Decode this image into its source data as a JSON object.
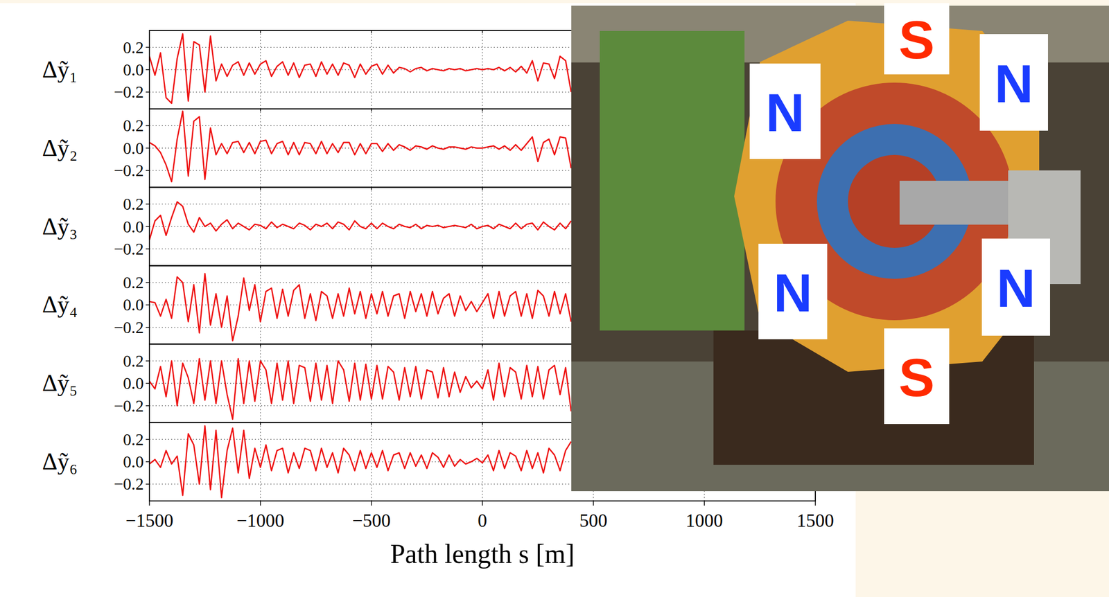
{
  "chart_data": {
    "type": "line",
    "xlabel": "Path length s [m]",
    "x": [
      -1500,
      -1475,
      -1450,
      -1425,
      -1400,
      -1375,
      -1350,
      -1325,
      -1300,
      -1275,
      -1250,
      -1225,
      -1200,
      -1175,
      -1150,
      -1125,
      -1100,
      -1075,
      -1050,
      -1025,
      -1000,
      -975,
      -950,
      -925,
      -900,
      -875,
      -850,
      -825,
      -800,
      -775,
      -750,
      -725,
      -700,
      -675,
      -650,
      -625,
      -600,
      -575,
      -550,
      -525,
      -500,
      -475,
      -450,
      -425,
      -400,
      -375,
      -350,
      -325,
      -300,
      -275,
      -250,
      -225,
      -200,
      -175,
      -150,
      -125,
      -100,
      -75,
      -50,
      -25,
      0,
      25,
      50,
      75,
      100,
      125,
      150,
      175,
      200,
      225,
      250,
      275,
      300,
      325,
      350,
      375,
      400
    ],
    "xlim": [
      -1500,
      1500
    ],
    "xticks": [
      {
        "value": -1500,
        "label": "−1500"
      },
      {
        "value": -1000,
        "label": "−1000"
      },
      {
        "value": -500,
        "label": "−500"
      },
      0,
      500,
      1000,
      1500
    ],
    "ylim": [
      -0.35,
      0.35
    ],
    "yticks": [
      {
        "value": -0.2,
        "label": "−0.2"
      },
      {
        "value": 0,
        "label": "0.0"
      },
      0.2
    ],
    "grid": true,
    "series": [
      {
        "name": "Δỹ₁",
        "color": "#ee1111",
        "values": [
          0.12,
          -0.05,
          0.15,
          -0.25,
          -0.3,
          0.1,
          0.32,
          -0.28,
          0.25,
          0.22,
          -0.2,
          0.3,
          -0.1,
          0.05,
          -0.06,
          0.04,
          0.07,
          -0.05,
          0.06,
          -0.04,
          0.05,
          0.08,
          -0.06,
          0.03,
          0.07,
          -0.05,
          0.06,
          -0.07,
          0.04,
          0.05,
          -0.06,
          0.07,
          -0.04,
          0.05,
          -0.05,
          0.06,
          0.04,
          -0.07,
          0.05,
          -0.04,
          0.03,
          0.05,
          -0.04,
          0.04,
          -0.03,
          0.02,
          0.01,
          -0.02,
          0.01,
          0.02,
          -0.01,
          0.01,
          0.0,
          -0.01,
          0.01,
          0.0,
          0.01,
          -0.01,
          0.0,
          0.01,
          0.0,
          0.01,
          0.0,
          0.02,
          -0.01,
          0.02,
          -0.02,
          0.03,
          -0.03,
          0.08,
          -0.1,
          0.06,
          0.05,
          -0.08,
          0.12,
          0.08,
          -0.2
        ]
      },
      {
        "name": "Δỹ₂",
        "color": "#ee1111",
        "values": [
          0.05,
          0.02,
          -0.04,
          -0.15,
          -0.3,
          0.08,
          0.33,
          -0.25,
          0.24,
          0.28,
          -0.28,
          0.18,
          -0.06,
          0.04,
          -0.05,
          0.05,
          0.06,
          -0.04,
          0.05,
          -0.05,
          0.06,
          0.07,
          -0.05,
          0.04,
          0.06,
          -0.06,
          0.05,
          -0.06,
          0.05,
          0.04,
          -0.05,
          0.06,
          -0.05,
          0.04,
          -0.04,
          0.05,
          0.05,
          -0.06,
          0.04,
          -0.05,
          0.04,
          0.04,
          -0.03,
          0.04,
          -0.02,
          0.03,
          0.01,
          -0.02,
          0.02,
          0.01,
          -0.01,
          0.02,
          0.0,
          -0.01,
          0.01,
          0.01,
          0.0,
          -0.01,
          0.01,
          0.0,
          0.0,
          0.01,
          0.02,
          -0.01,
          0.02,
          -0.02,
          0.03,
          -0.02,
          0.04,
          0.1,
          -0.12,
          0.05,
          0.08,
          -0.06,
          0.1,
          0.09,
          -0.18
        ]
      },
      {
        "name": "Δỹ₃",
        "color": "#ee1111",
        "values": [
          -0.12,
          0.05,
          0.1,
          -0.08,
          0.08,
          0.22,
          0.18,
          0.02,
          -0.05,
          0.08,
          0.0,
          0.03,
          -0.04,
          0.02,
          0.06,
          -0.02,
          0.03,
          0.0,
          -0.03,
          0.02,
          0.01,
          -0.02,
          0.04,
          -0.01,
          0.02,
          0.0,
          -0.02,
          0.03,
          0.01,
          -0.03,
          0.02,
          0.0,
          0.03,
          -0.02,
          0.04,
          0.02,
          -0.03,
          0.05,
          0.0,
          -0.02,
          0.03,
          -0.02,
          0.03,
          0.0,
          -0.02,
          0.02,
          0.0,
          -0.01,
          0.02,
          -0.02,
          0.01,
          0.0,
          0.01,
          -0.01,
          0.0,
          0.01,
          0.0,
          -0.01,
          0.02,
          -0.02,
          0.0,
          0.01,
          -0.02,
          0.02,
          0.0,
          -0.02,
          0.03,
          -0.02,
          0.02,
          0.03,
          -0.03,
          0.04,
          0.0,
          -0.03,
          0.03,
          -0.02,
          0.05
        ]
      },
      {
        "name": "Δỹ₄",
        "color": "#ee1111",
        "values": [
          0.03,
          0.02,
          -0.1,
          0.05,
          -0.12,
          0.25,
          0.2,
          -0.15,
          0.18,
          -0.25,
          0.28,
          -0.18,
          0.1,
          -0.2,
          0.08,
          -0.32,
          -0.1,
          0.24,
          -0.05,
          0.18,
          -0.15,
          0.12,
          0.15,
          -0.12,
          0.14,
          -0.1,
          0.13,
          0.18,
          -0.12,
          0.1,
          -0.14,
          0.12,
          0.08,
          -0.12,
          0.1,
          -0.1,
          0.15,
          -0.08,
          0.12,
          -0.12,
          0.1,
          -0.08,
          0.12,
          -0.1,
          0.08,
          0.1,
          -0.12,
          0.12,
          -0.06,
          0.1,
          -0.1,
          0.12,
          -0.08,
          0.06,
          0.1,
          -0.1,
          0.08,
          -0.05,
          0.03,
          -0.06,
          0.02,
          0.1,
          -0.12,
          0.12,
          -0.1,
          0.08,
          0.12,
          -0.1,
          0.1,
          -0.12,
          0.13,
          0.08,
          -0.1,
          0.12,
          -0.08,
          0.1,
          -0.15
        ]
      },
      {
        "name": "Δỹ₅",
        "color": "#ee1111",
        "values": [
          0.02,
          -0.05,
          0.15,
          -0.12,
          0.2,
          -0.2,
          0.18,
          0.05,
          -0.18,
          0.22,
          -0.15,
          0.2,
          -0.18,
          0.2,
          -0.1,
          -0.32,
          0.22,
          -0.18,
          0.2,
          -0.16,
          0.2,
          0.12,
          -0.18,
          0.18,
          -0.15,
          0.2,
          -0.18,
          0.16,
          0.14,
          -0.16,
          0.18,
          -0.15,
          0.16,
          -0.18,
          0.2,
          0.12,
          -0.16,
          0.18,
          -0.15,
          0.17,
          -0.14,
          0.16,
          -0.14,
          0.15,
          0.1,
          -0.15,
          0.14,
          -0.12,
          0.15,
          -0.14,
          0.12,
          0.1,
          -0.13,
          0.14,
          -0.12,
          0.1,
          -0.08,
          0.06,
          -0.04,
          0.02,
          -0.05,
          0.12,
          -0.15,
          0.18,
          -0.12,
          0.14,
          0.1,
          -0.14,
          0.16,
          -0.12,
          0.15,
          -0.14,
          0.12,
          0.16,
          -0.1,
          0.14,
          -0.25
        ]
      },
      {
        "name": "Δỹ₆",
        "color": "#ee1111",
        "values": [
          -0.02,
          0.02,
          -0.05,
          0.1,
          -0.02,
          0.05,
          -0.3,
          0.25,
          0.15,
          -0.2,
          0.32,
          -0.25,
          0.28,
          -0.32,
          0.1,
          0.3,
          -0.1,
          0.28,
          -0.15,
          0.12,
          -0.05,
          0.15,
          -0.08,
          0.1,
          0.12,
          -0.1,
          0.08,
          -0.06,
          0.12,
          0.1,
          -0.08,
          0.12,
          -0.05,
          0.08,
          -0.1,
          0.12,
          0.06,
          -0.08,
          0.1,
          -0.06,
          0.08,
          -0.05,
          0.1,
          -0.08,
          0.06,
          0.08,
          -0.06,
          0.08,
          -0.04,
          0.06,
          -0.06,
          0.08,
          0.04,
          -0.05,
          0.06,
          -0.04,
          0.02,
          -0.02,
          0.0,
          0.03,
          -0.01,
          0.06,
          -0.08,
          0.1,
          -0.06,
          0.08,
          0.05,
          -0.08,
          0.1,
          -0.06,
          0.08,
          -0.1,
          0.12,
          0.06,
          -0.08,
          0.1,
          0.18
        ]
      }
    ]
  },
  "photo": {
    "labels": [
      {
        "text": "S",
        "color": "#ff2a00"
      },
      {
        "text": "N",
        "color": "#1a3cff"
      },
      {
        "text": "N",
        "color": "#1a3cff"
      },
      {
        "text": "N",
        "color": "#1a3cff"
      },
      {
        "text": "N",
        "color": "#1a3cff"
      },
      {
        "text": "S",
        "color": "#ff2a00"
      }
    ]
  }
}
